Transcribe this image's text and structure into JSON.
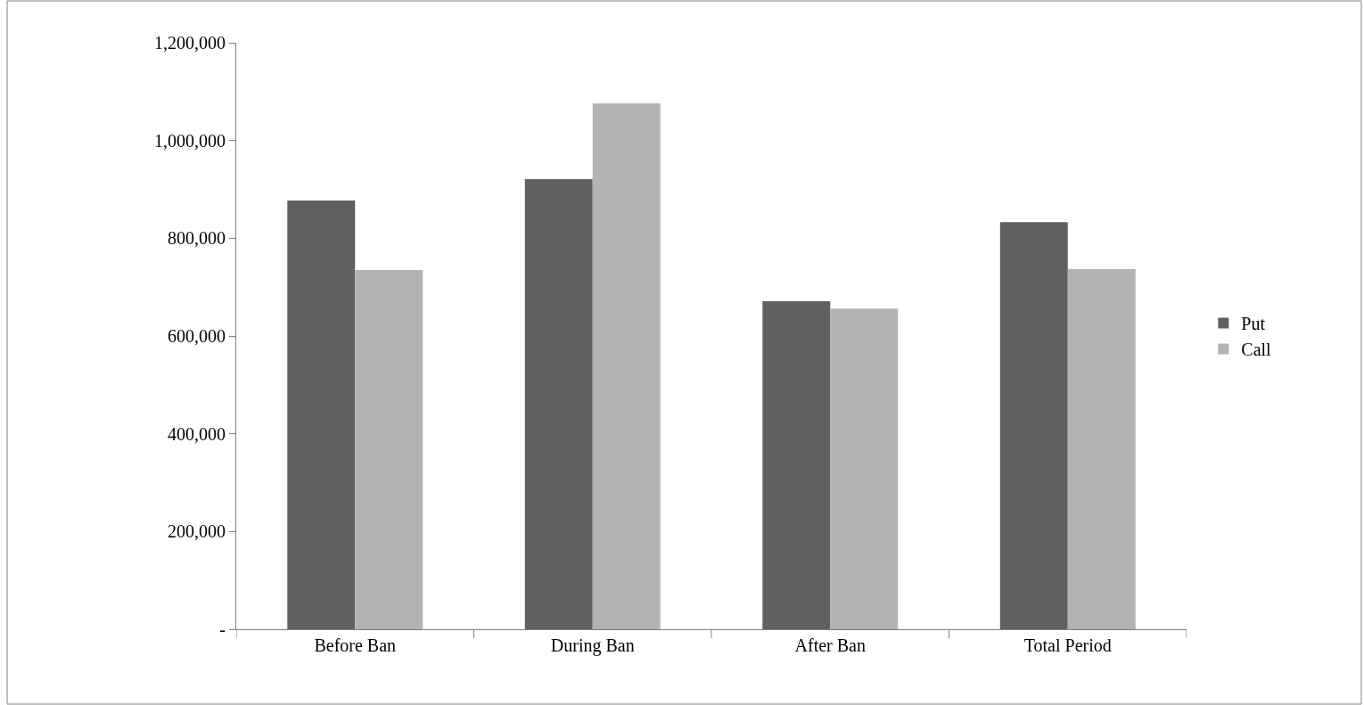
{
  "chart_data": {
    "type": "bar",
    "categories": [
      "Before Ban",
      "During Ban",
      "After Ban",
      "Total Period"
    ],
    "series": [
      {
        "name": "Put",
        "color": "#606060",
        "values": [
          877000,
          921000,
          671000,
          833000
        ]
      },
      {
        "name": "Call",
        "color": "#b3b3b3",
        "values": [
          735000,
          1076000,
          656000,
          737000
        ]
      }
    ],
    "ylim": [
      0,
      1200000
    ],
    "yticks": [
      {
        "value": 0,
        "label": "-"
      },
      {
        "value": 200000,
        "label": "200,000"
      },
      {
        "value": 400000,
        "label": "400,000"
      },
      {
        "value": 600000,
        "label": "600,000"
      },
      {
        "value": 800000,
        "label": "800,000"
      },
      {
        "value": 1000000,
        "label": "1,000,000"
      },
      {
        "value": 1200000,
        "label": "1,200,000"
      }
    ],
    "legend": "right"
  }
}
